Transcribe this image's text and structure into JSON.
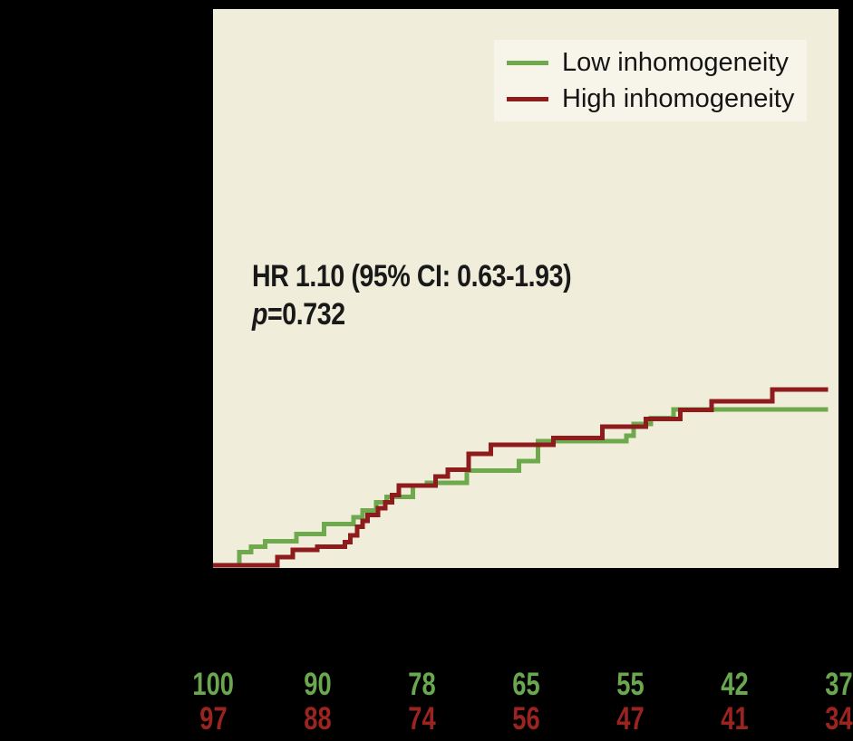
{
  "colors": {
    "background": "#000000",
    "plot_bg": "#f0edda",
    "legend_bg": "#f7f5e9",
    "green_line": "#6fa94e",
    "red_line": "#8e1c1c",
    "green_text": "#6aa84f",
    "red_text": "#9c2420",
    "annotation_text": "#191919"
  },
  "chart_data": {
    "type": "line",
    "subtype": "kaplan-meier-step",
    "title": "",
    "xlabel": "",
    "ylabel": "",
    "xlim_months": [
      0,
      36
    ],
    "ylim_percent": [
      0,
      100
    ],
    "curve_end_month": 35.4,
    "grid": false,
    "legend": {
      "position": "top-right",
      "items": [
        {
          "label": "Low inhomogeneity",
          "color": "#6fa94e"
        },
        {
          "label": "High inhomogeneity",
          "color": "#8e1c1c"
        }
      ]
    },
    "annotation": {
      "hr_line": "HR 1.10 (95% CI: 0.63-1.93)",
      "p_symbol": "p",
      "p_value": "=0.732"
    },
    "series": [
      {
        "name": "Low inhomogeneity",
        "color": "#6fa94e",
        "points": [
          [
            0,
            0
          ],
          [
            1.5,
            2.4
          ],
          [
            2.2,
            3.4
          ],
          [
            3.0,
            4.4
          ],
          [
            4.8,
            5.7
          ],
          [
            6.4,
            7.5
          ],
          [
            8.1,
            8.8
          ],
          [
            8.6,
            10.0
          ],
          [
            9.4,
            11.5
          ],
          [
            10.0,
            12.5
          ],
          [
            11.5,
            14.6
          ],
          [
            12.3,
            15.1
          ],
          [
            14.6,
            17.3
          ],
          [
            17.6,
            19.0
          ],
          [
            18.7,
            22.7
          ],
          [
            23.8,
            23.7
          ],
          [
            24.2,
            25.8
          ],
          [
            25.2,
            26.9
          ],
          [
            26.5,
            28.5
          ]
        ]
      },
      {
        "name": "High inhomogeneity",
        "color": "#8e1c1c",
        "points": [
          [
            0,
            0
          ],
          [
            3.7,
            1.5
          ],
          [
            4.6,
            2.8
          ],
          [
            6.0,
            3.4
          ],
          [
            7.6,
            4.2
          ],
          [
            7.9,
            5.5
          ],
          [
            8.3,
            7.0
          ],
          [
            8.6,
            8.1
          ],
          [
            8.9,
            9.2
          ],
          [
            9.5,
            10.4
          ],
          [
            9.9,
            11.5
          ],
          [
            10.3,
            12.8
          ],
          [
            10.7,
            14.6
          ],
          [
            12.8,
            16.2
          ],
          [
            13.5,
            17.5
          ],
          [
            14.7,
            20.4
          ],
          [
            16.0,
            22.0
          ],
          [
            19.6,
            23.3
          ],
          [
            22.4,
            25.3
          ],
          [
            24.9,
            26.7
          ],
          [
            26.9,
            28.4
          ],
          [
            28.7,
            30.0
          ],
          [
            32.2,
            32.1
          ]
        ]
      }
    ],
    "at_risk": {
      "low": [
        "100",
        "90",
        "78",
        "65",
        "55",
        "42",
        "37"
      ],
      "high": [
        "97",
        "88",
        "74",
        "56",
        "47",
        "41",
        "34"
      ]
    }
  }
}
